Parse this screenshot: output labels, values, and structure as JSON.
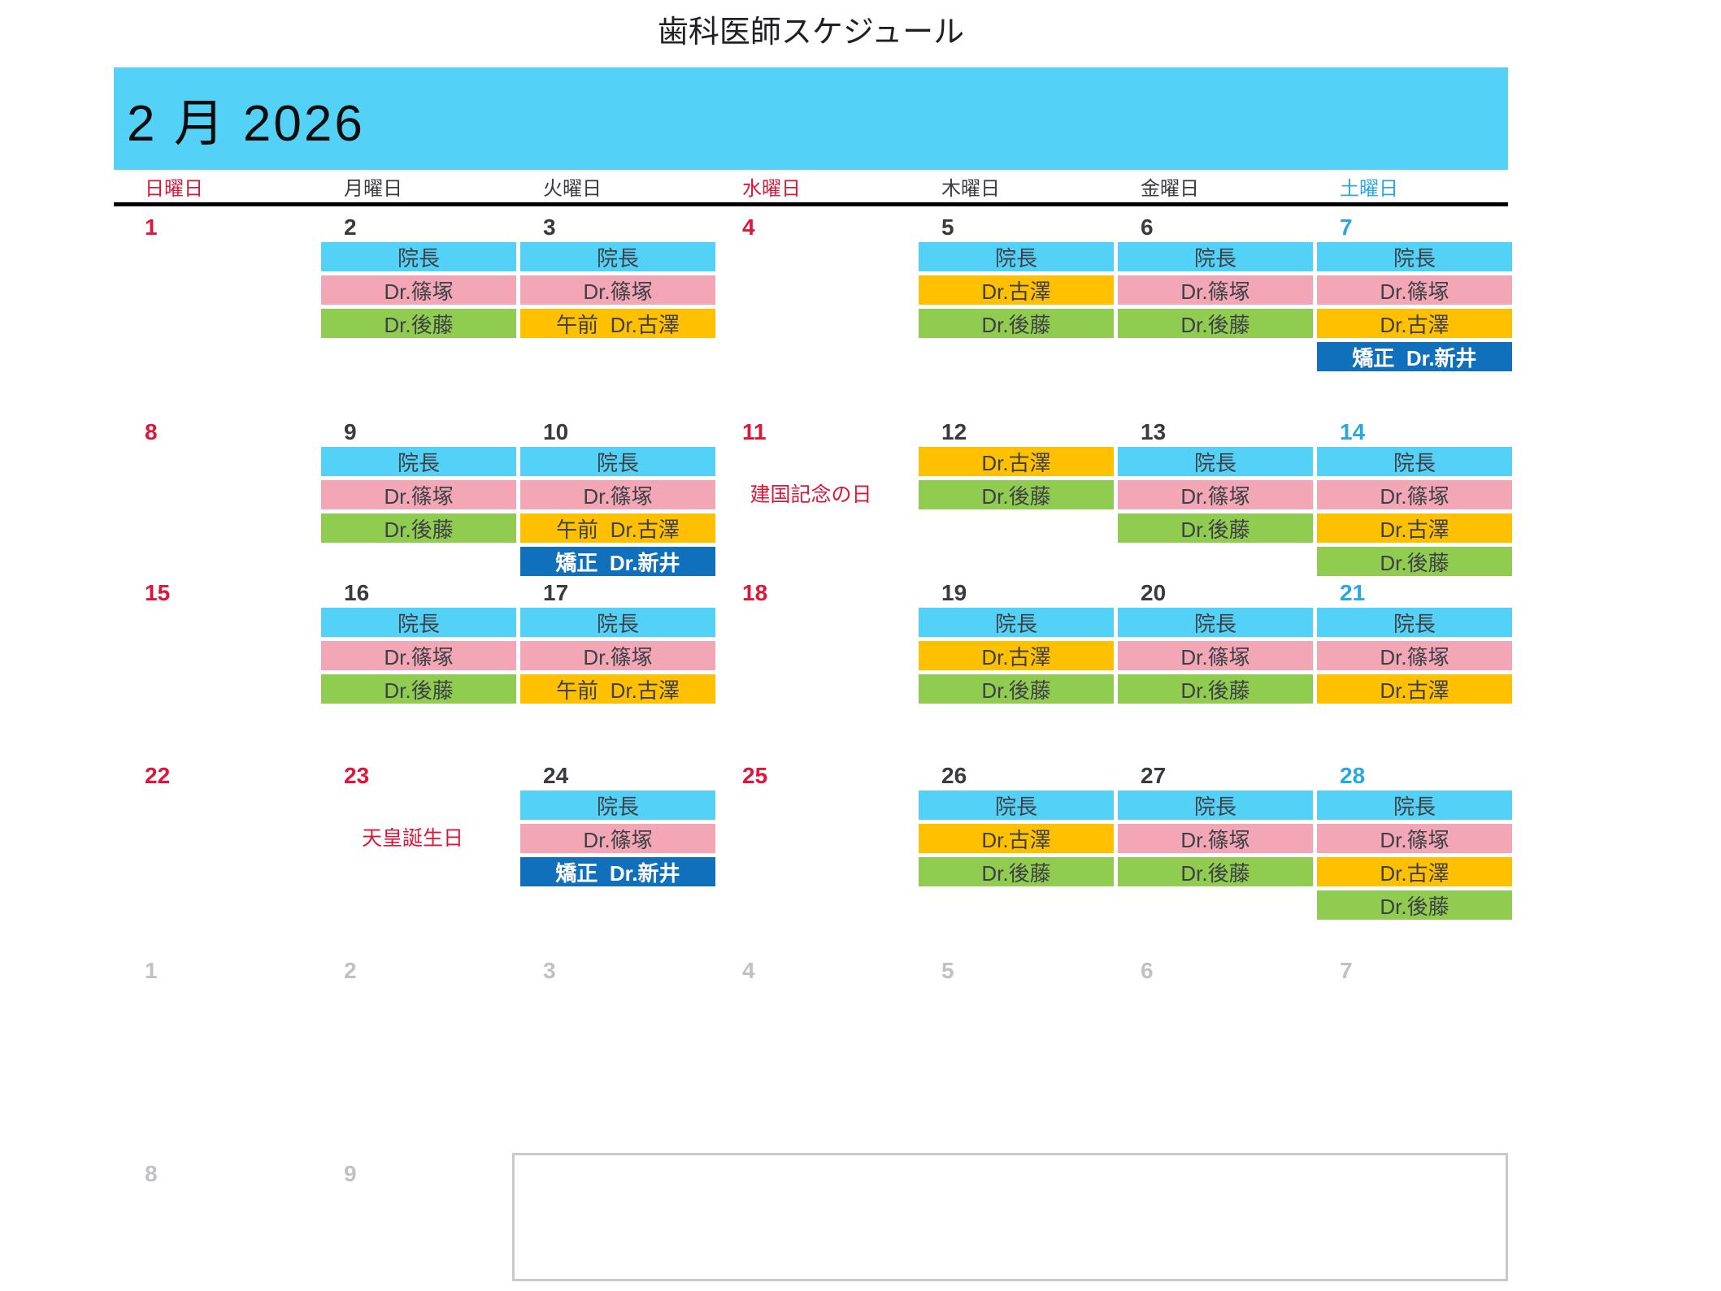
{
  "page": {
    "title": "歯科医師スケジュール"
  },
  "calendar": {
    "month_label": "2 月 2026",
    "weekdays": [
      {
        "label": "日曜日",
        "color": "red"
      },
      {
        "label": "月曜日",
        "color": "dark"
      },
      {
        "label": "火曜日",
        "color": "dark"
      },
      {
        "label": "水曜日",
        "color": "red"
      },
      {
        "label": "木曜日",
        "color": "dark"
      },
      {
        "label": "金曜日",
        "color": "dark"
      },
      {
        "label": "土曜日",
        "color": "blue"
      }
    ],
    "doctor_colors": {
      "cyan": "#54D1F7",
      "pink": "#F3A6B6",
      "green": "#8FCC50",
      "orange": "#FFC000",
      "navy": "#1170BC"
    },
    "accent_colors": {
      "holiday_red": "#DE1638",
      "saturday_blue": "#29A8E0",
      "next_month_gray": "#C1C1C5",
      "header_band": "#54D1F7"
    },
    "weeks": [
      {
        "days": [
          {
            "num": "1",
            "style": "red"
          },
          {
            "num": "2",
            "style": "dark",
            "entries": [
              {
                "slot": 0,
                "label": "院長",
                "type": "cyan"
              },
              {
                "slot": 1,
                "label": "Dr.篠塚",
                "type": "pink"
              },
              {
                "slot": 2,
                "label": "Dr.後藤",
                "type": "green"
              }
            ]
          },
          {
            "num": "3",
            "style": "dark",
            "entries": [
              {
                "slot": 0,
                "label": "院長",
                "type": "cyan"
              },
              {
                "slot": 1,
                "label": "Dr.篠塚",
                "type": "pink"
              },
              {
                "slot": 2,
                "label": "午前  Dr.古澤",
                "type": "orange"
              }
            ]
          },
          {
            "num": "4",
            "style": "red"
          },
          {
            "num": "5",
            "style": "dark",
            "entries": [
              {
                "slot": 0,
                "label": "院長",
                "type": "cyan"
              },
              {
                "slot": 1,
                "label": "Dr.古澤",
                "type": "orange"
              },
              {
                "slot": 2,
                "label": "Dr.後藤",
                "type": "green"
              }
            ]
          },
          {
            "num": "6",
            "style": "dark",
            "entries": [
              {
                "slot": 0,
                "label": "院長",
                "type": "cyan"
              },
              {
                "slot": 1,
                "label": "Dr.篠塚",
                "type": "pink"
              },
              {
                "slot": 2,
                "label": "Dr.後藤",
                "type": "green"
              }
            ]
          },
          {
            "num": "7",
            "style": "blue",
            "entries": [
              {
                "slot": 0,
                "label": "院長",
                "type": "cyan"
              },
              {
                "slot": 1,
                "label": "Dr.篠塚",
                "type": "pink"
              },
              {
                "slot": 2,
                "label": "Dr.古澤",
                "type": "orange"
              },
              {
                "slot": 3,
                "label": "矯正  Dr.新井",
                "type": "navy"
              }
            ]
          }
        ]
      },
      {
        "days": [
          {
            "num": "8",
            "style": "red"
          },
          {
            "num": "9",
            "style": "dark",
            "entries": [
              {
                "slot": 0,
                "label": "院長",
                "type": "cyan"
              },
              {
                "slot": 1,
                "label": "Dr.篠塚",
                "type": "pink"
              },
              {
                "slot": 2,
                "label": "Dr.後藤",
                "type": "green"
              }
            ]
          },
          {
            "num": "10",
            "style": "dark",
            "entries": [
              {
                "slot": 0,
                "label": "院長",
                "type": "cyan"
              },
              {
                "slot": 1,
                "label": "Dr.篠塚",
                "type": "pink"
              },
              {
                "slot": 2,
                "label": "午前  Dr.古澤",
                "type": "orange"
              },
              {
                "slot": 3,
                "label": "矯正  Dr.新井",
                "type": "navy"
              }
            ]
          },
          {
            "num": "11",
            "style": "red",
            "entries": [
              {
                "slot": 1,
                "label": "建国記念の日",
                "type": "holiday"
              }
            ]
          },
          {
            "num": "12",
            "style": "dark",
            "entries": [
              {
                "slot": 0,
                "label": "Dr.古澤",
                "type": "orange"
              },
              {
                "slot": 1,
                "label": "Dr.後藤",
                "type": "green"
              }
            ]
          },
          {
            "num": "13",
            "style": "dark",
            "entries": [
              {
                "slot": 0,
                "label": "院長",
                "type": "cyan"
              },
              {
                "slot": 1,
                "label": "Dr.篠塚",
                "type": "pink"
              },
              {
                "slot": 2,
                "label": "Dr.後藤",
                "type": "green"
              }
            ]
          },
          {
            "num": "14",
            "style": "blue",
            "entries": [
              {
                "slot": 0,
                "label": "院長",
                "type": "cyan"
              },
              {
                "slot": 1,
                "label": "Dr.篠塚",
                "type": "pink"
              },
              {
                "slot": 2,
                "label": "Dr.古澤",
                "type": "orange"
              },
              {
                "slot": 3,
                "label": "Dr.後藤",
                "type": "green"
              }
            ]
          }
        ]
      },
      {
        "days": [
          {
            "num": "15",
            "style": "red"
          },
          {
            "num": "16",
            "style": "dark",
            "entries": [
              {
                "slot": 0,
                "label": "院長",
                "type": "cyan"
              },
              {
                "slot": 1,
                "label": "Dr.篠塚",
                "type": "pink"
              },
              {
                "slot": 2,
                "label": "Dr.後藤",
                "type": "green"
              }
            ]
          },
          {
            "num": "17",
            "style": "dark",
            "entries": [
              {
                "slot": 0,
                "label": "院長",
                "type": "cyan"
              },
              {
                "slot": 1,
                "label": "Dr.篠塚",
                "type": "pink"
              },
              {
                "slot": 2,
                "label": "午前  Dr.古澤",
                "type": "orange"
              }
            ]
          },
          {
            "num": "18",
            "style": "red"
          },
          {
            "num": "19",
            "style": "dark",
            "entries": [
              {
                "slot": 0,
                "label": "院長",
                "type": "cyan"
              },
              {
                "slot": 1,
                "label": "Dr.古澤",
                "type": "orange"
              },
              {
                "slot": 2,
                "label": "Dr.後藤",
                "type": "green"
              }
            ]
          },
          {
            "num": "20",
            "style": "dark",
            "entries": [
              {
                "slot": 0,
                "label": "院長",
                "type": "cyan"
              },
              {
                "slot": 1,
                "label": "Dr.篠塚",
                "type": "pink"
              },
              {
                "slot": 2,
                "label": "Dr.後藤",
                "type": "green"
              }
            ]
          },
          {
            "num": "21",
            "style": "blue",
            "entries": [
              {
                "slot": 0,
                "label": "院長",
                "type": "cyan"
              },
              {
                "slot": 1,
                "label": "Dr.篠塚",
                "type": "pink"
              },
              {
                "slot": 2,
                "label": "Dr.古澤",
                "type": "orange"
              }
            ]
          }
        ]
      },
      {
        "days": [
          {
            "num": "22",
            "style": "red"
          },
          {
            "num": "23",
            "style": "red",
            "entries": [
              {
                "slot": 1,
                "label": "天皇誕生日",
                "type": "holiday"
              }
            ]
          },
          {
            "num": "24",
            "style": "dark",
            "entries": [
              {
                "slot": 0,
                "label": "院長",
                "type": "cyan"
              },
              {
                "slot": 1,
                "label": "Dr.篠塚",
                "type": "pink"
              },
              {
                "slot": 2,
                "label": "矯正  Dr.新井",
                "type": "navy"
              }
            ]
          },
          {
            "num": "25",
            "style": "red"
          },
          {
            "num": "26",
            "style": "dark",
            "entries": [
              {
                "slot": 0,
                "label": "院長",
                "type": "cyan"
              },
              {
                "slot": 1,
                "label": "Dr.古澤",
                "type": "orange"
              },
              {
                "slot": 2,
                "label": "Dr.後藤",
                "type": "green"
              }
            ]
          },
          {
            "num": "27",
            "style": "dark",
            "entries": [
              {
                "slot": 0,
                "label": "院長",
                "type": "cyan"
              },
              {
                "slot": 1,
                "label": "Dr.篠塚",
                "type": "pink"
              },
              {
                "slot": 2,
                "label": "Dr.後藤",
                "type": "green"
              }
            ]
          },
          {
            "num": "28",
            "style": "blue",
            "entries": [
              {
                "slot": 0,
                "label": "院長",
                "type": "cyan"
              },
              {
                "slot": 1,
                "label": "Dr.篠塚",
                "type": "pink"
              },
              {
                "slot": 2,
                "label": "Dr.古澤",
                "type": "orange"
              },
              {
                "slot": 3,
                "label": "Dr.後藤",
                "type": "green"
              }
            ]
          }
        ]
      },
      {
        "days": [
          {
            "num": "1",
            "style": "gray"
          },
          {
            "num": "2",
            "style": "gray"
          },
          {
            "num": "3",
            "style": "gray"
          },
          {
            "num": "4",
            "style": "gray"
          },
          {
            "num": "5",
            "style": "gray"
          },
          {
            "num": "6",
            "style": "gray"
          },
          {
            "num": "7",
            "style": "gray"
          }
        ]
      },
      {
        "notes_box": true,
        "days": [
          {
            "num": "8",
            "style": "gray"
          },
          {
            "num": "9",
            "style": "gray"
          }
        ]
      }
    ]
  }
}
